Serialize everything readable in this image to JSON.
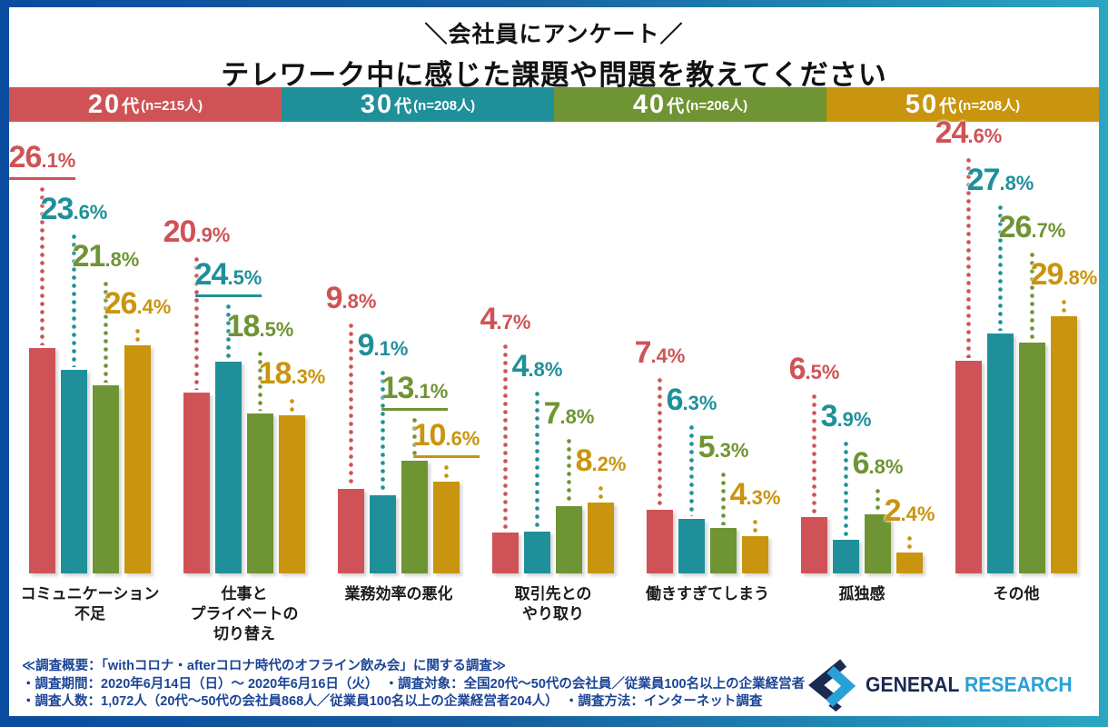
{
  "header": {
    "tagline": "＼会社員にアンケート／",
    "title": "テレワーク中に感じた課題や問題を教えてください"
  },
  "legend": {
    "items": [
      {
        "age": "20",
        "unit": "代",
        "count": "(n=215人)"
      },
      {
        "age": "30",
        "unit": "代",
        "count": "(n=208人)"
      },
      {
        "age": "40",
        "unit": "代",
        "count": "(n=206人)"
      },
      {
        "age": "50",
        "unit": "代",
        "count": "(n=208人)"
      }
    ]
  },
  "chart_data": {
    "type": "bar",
    "unit": "%",
    "title": "テレワーク中に感じた課題や問題を教えてください",
    "categories": [
      "コミュニケーション不足",
      "仕事とプライベートの切り替え",
      "業務効率の悪化",
      "取引先とのやり取り",
      "働きすぎてしまう",
      "孤独感",
      "その他"
    ],
    "category_lines": [
      [
        "コミュニケーション",
        "不足"
      ],
      [
        "仕事と",
        "プライベートの",
        "切り替え"
      ],
      [
        "業務効率の悪化"
      ],
      [
        "取引先との",
        "やり取り"
      ],
      [
        "働きすぎてしまう"
      ],
      [
        "孤独感"
      ],
      [
        "その他"
      ]
    ],
    "series": [
      {
        "name": "20代",
        "n": "215人",
        "color": "#cf5356",
        "values": [
          26.1,
          20.9,
          9.8,
          4.7,
          7.4,
          6.5,
          24.6
        ]
      },
      {
        "name": "30代",
        "n": "208人",
        "color": "#1f9099",
        "values": [
          23.6,
          24.5,
          9.1,
          4.8,
          6.3,
          3.9,
          27.8
        ]
      },
      {
        "name": "40代",
        "n": "206人",
        "color": "#6f9433",
        "values": [
          21.8,
          18.5,
          13.1,
          7.8,
          5.3,
          6.8,
          26.7
        ]
      },
      {
        "name": "50代",
        "n": "208人",
        "color": "#c9950e",
        "values": [
          26.4,
          18.3,
          10.6,
          8.2,
          4.3,
          2.4,
          29.8
        ]
      }
    ],
    "underlined_labels": [
      {
        "series": 0,
        "category": 0
      },
      {
        "series": 1,
        "category": 1
      },
      {
        "series": 2,
        "category": 2
      },
      {
        "series": 3,
        "category": 2
      }
    ],
    "ylim": [
      0,
      32
    ],
    "grid": false,
    "legend_position": "top",
    "value_labels": "above bars with dotted leader lines"
  },
  "footer": {
    "lines": [
      "≪調査概要：「withコロナ・afterコロナ時代のオフライン飲み会」に関する調査≫",
      "・調査期間：2020年6月14日（日）～ 2020年6月16日（火）　・調査対象：全国20代～50代の会社員／従業員100名以上の企業経営者",
      "・調査人数：1,072人（20代～50代の会社員868人／従業員100名以上の企業経営者204人）　・調査方法：インターネット調査"
    ]
  },
  "logo": {
    "text_primary": "GENERAL",
    "text_secondary": "RESEARCH",
    "color_primary": "#1b2a50",
    "color_secondary": "#2aa0d8"
  },
  "colors": {
    "frame_gradient_start": "#0a4c9f",
    "frame_gradient_end": "#2ba7c2",
    "footer_text": "#1b4496",
    "title_text": "#111111"
  }
}
